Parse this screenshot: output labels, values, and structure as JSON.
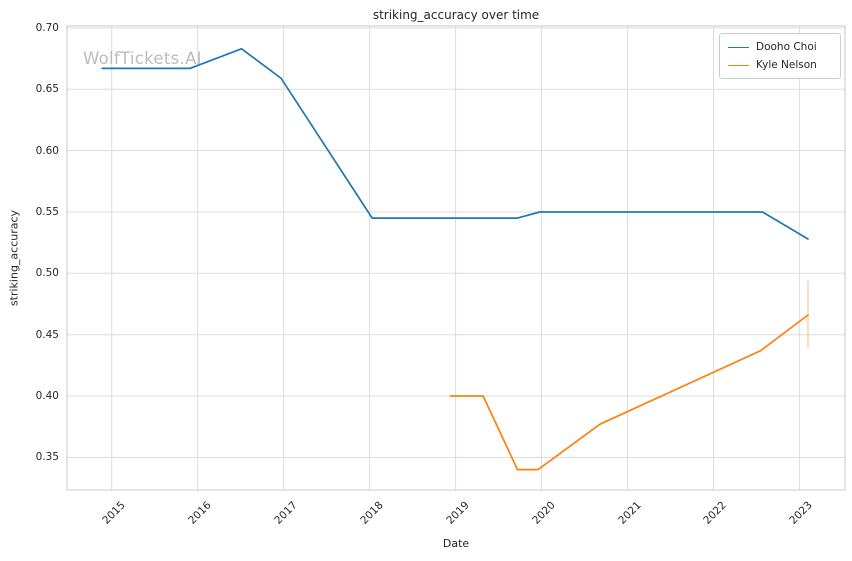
{
  "chart_data": {
    "type": "line",
    "title": "striking_accuracy over time",
    "watermark": "WolfTickets.AI",
    "grid": true,
    "legend_position": "upper right",
    "xlim": [
      2014.48,
      2023.53
    ],
    "ylim": [
      0.3234,
      0.7016
    ],
    "x_axis": {
      "label": "Date",
      "ticks": [
        {
          "value": 2015,
          "text": "2015"
        },
        {
          "value": 2016,
          "text": "2016"
        },
        {
          "value": 2017,
          "text": "2017"
        },
        {
          "value": 2018,
          "text": "2018"
        },
        {
          "value": 2019,
          "text": "2019"
        },
        {
          "value": 2020,
          "text": "2020"
        },
        {
          "value": 2021,
          "text": "2021"
        },
        {
          "value": 2022,
          "text": "2022"
        },
        {
          "value": 2023,
          "text": "2023"
        }
      ]
    },
    "y_axis": {
      "label": "striking_accuracy",
      "ticks": [
        {
          "value": 0.35,
          "text": "0.35"
        },
        {
          "value": 0.4,
          "text": "0.40"
        },
        {
          "value": 0.45,
          "text": "0.45"
        },
        {
          "value": 0.5,
          "text": "0.50"
        },
        {
          "value": 0.55,
          "text": "0.55"
        },
        {
          "value": 0.6,
          "text": "0.60"
        },
        {
          "value": 0.65,
          "text": "0.65"
        },
        {
          "value": 0.7,
          "text": "0.70"
        }
      ]
    },
    "series": [
      {
        "name": "Dooho Choi",
        "color": "#1f77b4",
        "points": [
          [
            2014.89,
            0.667
          ],
          [
            2015.91,
            0.667
          ],
          [
            2016.51,
            0.683
          ],
          [
            2016.97,
            0.659
          ],
          [
            2018.03,
            0.545
          ],
          [
            2019.72,
            0.545
          ],
          [
            2019.98,
            0.55
          ],
          [
            2022.57,
            0.55
          ],
          [
            2023.1,
            0.528
          ]
        ]
      },
      {
        "name": "Kyle Nelson",
        "color": "#ff7f0e",
        "points": [
          [
            2018.94,
            0.4
          ],
          [
            2019.32,
            0.4
          ],
          [
            2019.72,
            0.34
          ],
          [
            2019.96,
            0.34
          ],
          [
            2020.68,
            0.377
          ],
          [
            2022.55,
            0.437
          ],
          [
            2023.1,
            0.466
          ]
        ],
        "error_bar": {
          "x": 2023.1,
          "y_low": 0.439,
          "y_high": 0.494
        }
      }
    ],
    "colors": {
      "grid": "#dcdcdc",
      "spine": "#c8c8c8",
      "text": "#262626",
      "watermark": "#bcbcbc",
      "error_bar_opacity": 0.35
    }
  }
}
